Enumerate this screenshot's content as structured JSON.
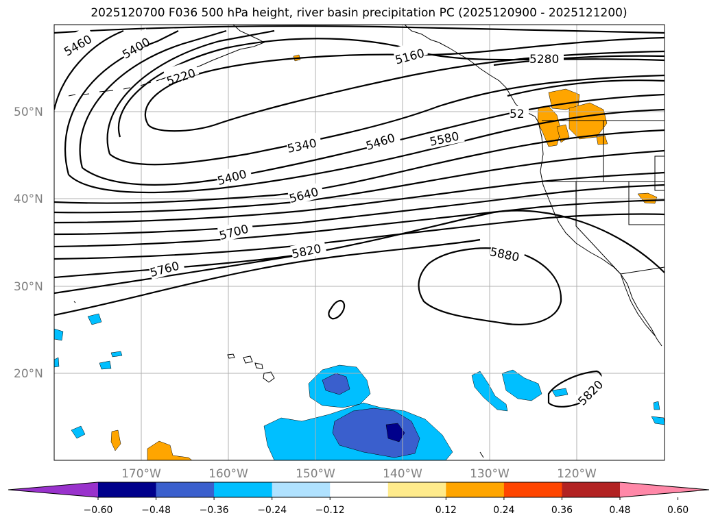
{
  "title": "2025120700 F036 500 hPa height, river basin precipitation PC (2025120900 - 2025121200)",
  "map": {
    "projection": "cylindrical",
    "lon_range": [
      -180,
      -110
    ],
    "lat_range": [
      10,
      60
    ],
    "lat_labels": [
      "50°N",
      "40°N",
      "30°N",
      "20°N"
    ],
    "lon_labels": [
      "170°W",
      "160°W",
      "150°W",
      "140°W",
      "130°W",
      "120°W"
    ],
    "contour_labels": [
      "5460",
      "5400",
      "5220",
      "5160",
      "5280",
      "5340",
      "5460",
      "5580",
      "5400",
      "5640",
      "5700",
      "5760",
      "5820",
      "5880",
      "5820",
      "52"
    ],
    "colors": {
      "coastline": "#000000",
      "grid": "#b0b0b0",
      "height_contour": "#000000",
      "pc_positive_024": "#ffa500",
      "pc_negative_024": "#00bfff",
      "pc_negative_036": "#3a5fcd",
      "pc_negative_048": "#00008b"
    }
  },
  "colorbar": {
    "tick_labels": [
      "−0.60",
      "−0.48",
      "−0.36",
      "−0.24",
      "−0.12",
      "0.12",
      "0.24",
      "0.36",
      "0.48",
      "0.60"
    ],
    "colors": [
      "#9932cc",
      "#00008b",
      "#3a5fcd",
      "#00bfff",
      "#b0e2ff",
      "#ffffff",
      "#ffeb8c",
      "#ffa500",
      "#ff4500",
      "#b22222",
      "#ff88a8"
    ]
  }
}
